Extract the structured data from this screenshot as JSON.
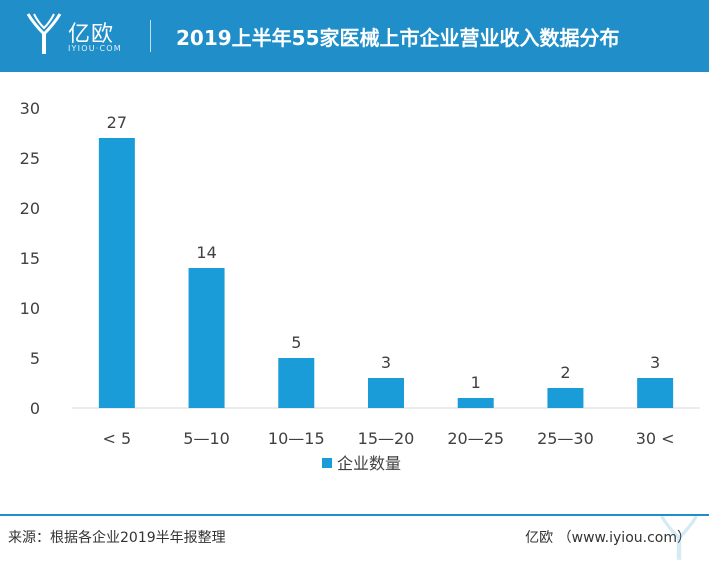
{
  "header": {
    "brand": "亿欧",
    "domain": "IYIOU·COM",
    "title": "2019上半年55家医械上市企业营业收入数据分布",
    "background_color": "#1f8ec9"
  },
  "chart_data": {
    "type": "bar",
    "title": "2019上半年55家医械上市企业营业收入数据分布",
    "categories": [
      "< 5",
      "5—10",
      "10—15",
      "15—20",
      "20—25",
      "25—30",
      "30 <"
    ],
    "series": [
      {
        "name": "企业数量",
        "values": [
          27,
          14,
          5,
          3,
          1,
          2,
          3
        ],
        "color": "#1a9cd8"
      }
    ],
    "ylim": [
      0,
      30
    ],
    "yticks": [
      0,
      5,
      10,
      15,
      20,
      25,
      30
    ],
    "xlabel": "",
    "ylabel": "",
    "grid": false,
    "legend_position": "bottom-center",
    "data_labels": true
  },
  "footer": {
    "source": "来源：根据各企业2019半年报整理",
    "credit": "亿欧 （www.iyiou.com）",
    "line_color": "#1f8ec9"
  }
}
